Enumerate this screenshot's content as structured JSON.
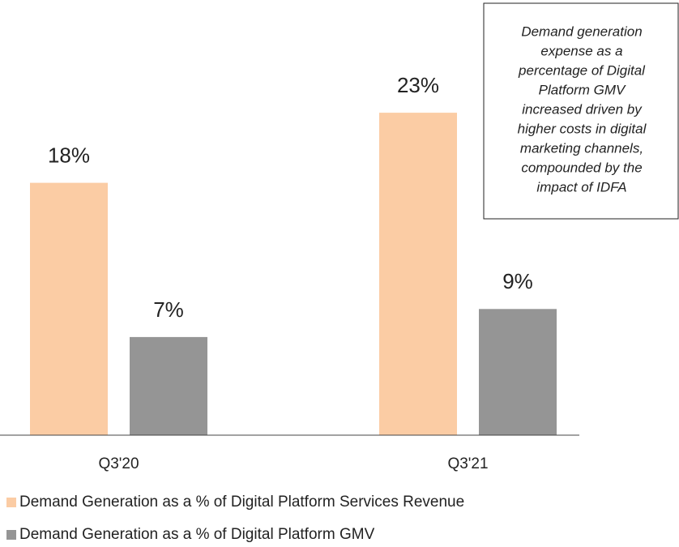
{
  "chart_data": {
    "type": "bar",
    "categories": [
      "Q3'20",
      "Q3'21"
    ],
    "series": [
      {
        "name": "Demand Generation as a % of Digital Platform Services Revenue",
        "color": "#fbcca4",
        "values": [
          18,
          23
        ],
        "value_labels": [
          "18%",
          "23%"
        ]
      },
      {
        "name": "Demand Generation as a % of Digital Platform GMV",
        "color": "#959595",
        "values": [
          7,
          9
        ],
        "value_labels": [
          "7%",
          "9%"
        ]
      }
    ],
    "annotation": [
      "Demand generation",
      "expense as a",
      "percentage of Digital",
      "Platform GMV",
      "increased driven by",
      "higher costs in digital",
      "marketing channels,",
      "compounded by the",
      "impact of IDFA"
    ],
    "legend": "bottom-left"
  }
}
